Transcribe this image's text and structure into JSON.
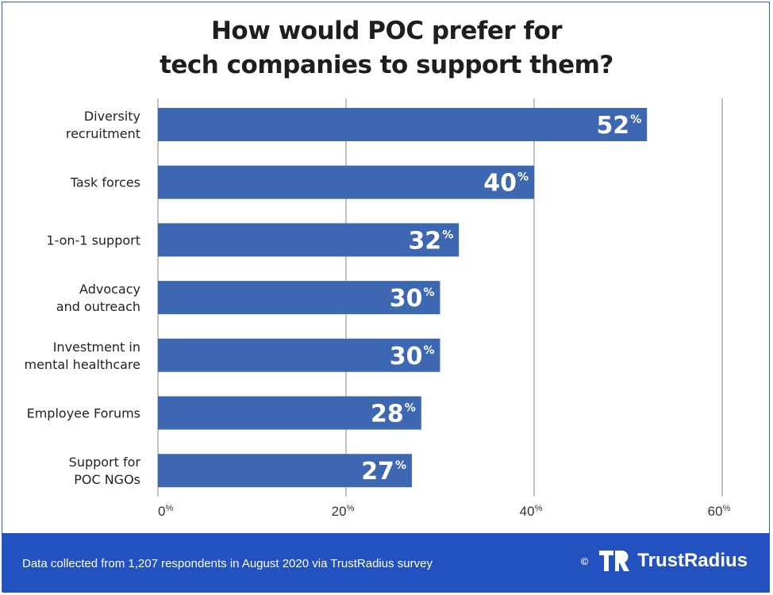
{
  "chart_data": {
    "type": "bar",
    "orientation": "horizontal",
    "title": "How would POC prefer for tech companies to support them?",
    "title_lines": [
      "How would POC prefer for",
      "tech companies to support them?"
    ],
    "categories": [
      [
        "Diversity",
        "recruitment"
      ],
      [
        "Task forces"
      ],
      [
        "1-on-1 support"
      ],
      [
        "Advocacy",
        "and outreach"
      ],
      [
        "Investment in",
        "mental healthcare"
      ],
      [
        "Employee Forums"
      ],
      [
        "Support for",
        "POC NGOs"
      ]
    ],
    "values": [
      52,
      40,
      32,
      30,
      30,
      28,
      27
    ],
    "value_labels": [
      "52",
      "40",
      "32",
      "30",
      "30",
      "28",
      "27"
    ],
    "unit": "%",
    "xlim": [
      0,
      60
    ],
    "xticks": [
      0,
      20,
      40,
      60
    ],
    "xtick_labels": [
      "0",
      "20",
      "40",
      "60"
    ],
    "grid": true,
    "bar_color": "#3d67b1"
  },
  "footer": {
    "note": "Data collected from 1,207 respondents in August 2020 via TrustRadius survey",
    "copyright": "©",
    "brand": "TrustRadius",
    "color": "#2352c0"
  }
}
